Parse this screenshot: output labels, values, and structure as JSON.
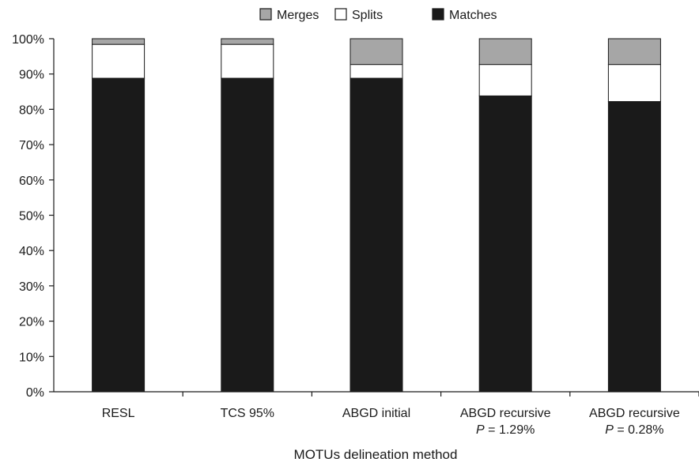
{
  "chart_data": {
    "type": "bar",
    "stacked": true,
    "percent_stacked": true,
    "xlabel": "MOTUs delineation method",
    "ylabel": "",
    "ylim": [
      0,
      100
    ],
    "yticks": [
      "0%",
      "10%",
      "20%",
      "30%",
      "40%",
      "50%",
      "60%",
      "70%",
      "80%",
      "90%",
      "100%"
    ],
    "grid": false,
    "legend_position": "top-center",
    "categories": [
      {
        "line1": "RESL",
        "line2_italic": "",
        "line2_rest": ""
      },
      {
        "line1": "TCS 95%",
        "line2_italic": "",
        "line2_rest": ""
      },
      {
        "line1": "ABGD initial",
        "line2_italic": "",
        "line2_rest": ""
      },
      {
        "line1": "ABGD recursive",
        "line2_italic": "P",
        "line2_rest": " = 1.29%"
      },
      {
        "line1": "ABGD recursive",
        "line2_italic": "P",
        "line2_rest": " = 0.28%"
      }
    ],
    "series": [
      {
        "name": "Matches",
        "color": "#1a1a1a",
        "values": [
          88.8,
          88.8,
          88.8,
          83.8,
          82.2
        ]
      },
      {
        "name": "Splits",
        "color": "#ffffff",
        "values": [
          9.6,
          9.6,
          3.9,
          8.9,
          10.5
        ]
      },
      {
        "name": "Merges",
        "color": "#a6a6a6",
        "values": [
          1.6,
          1.6,
          7.3,
          7.3,
          7.3
        ]
      }
    ],
    "legend_order": [
      "Merges",
      "Splits",
      "Matches"
    ]
  }
}
